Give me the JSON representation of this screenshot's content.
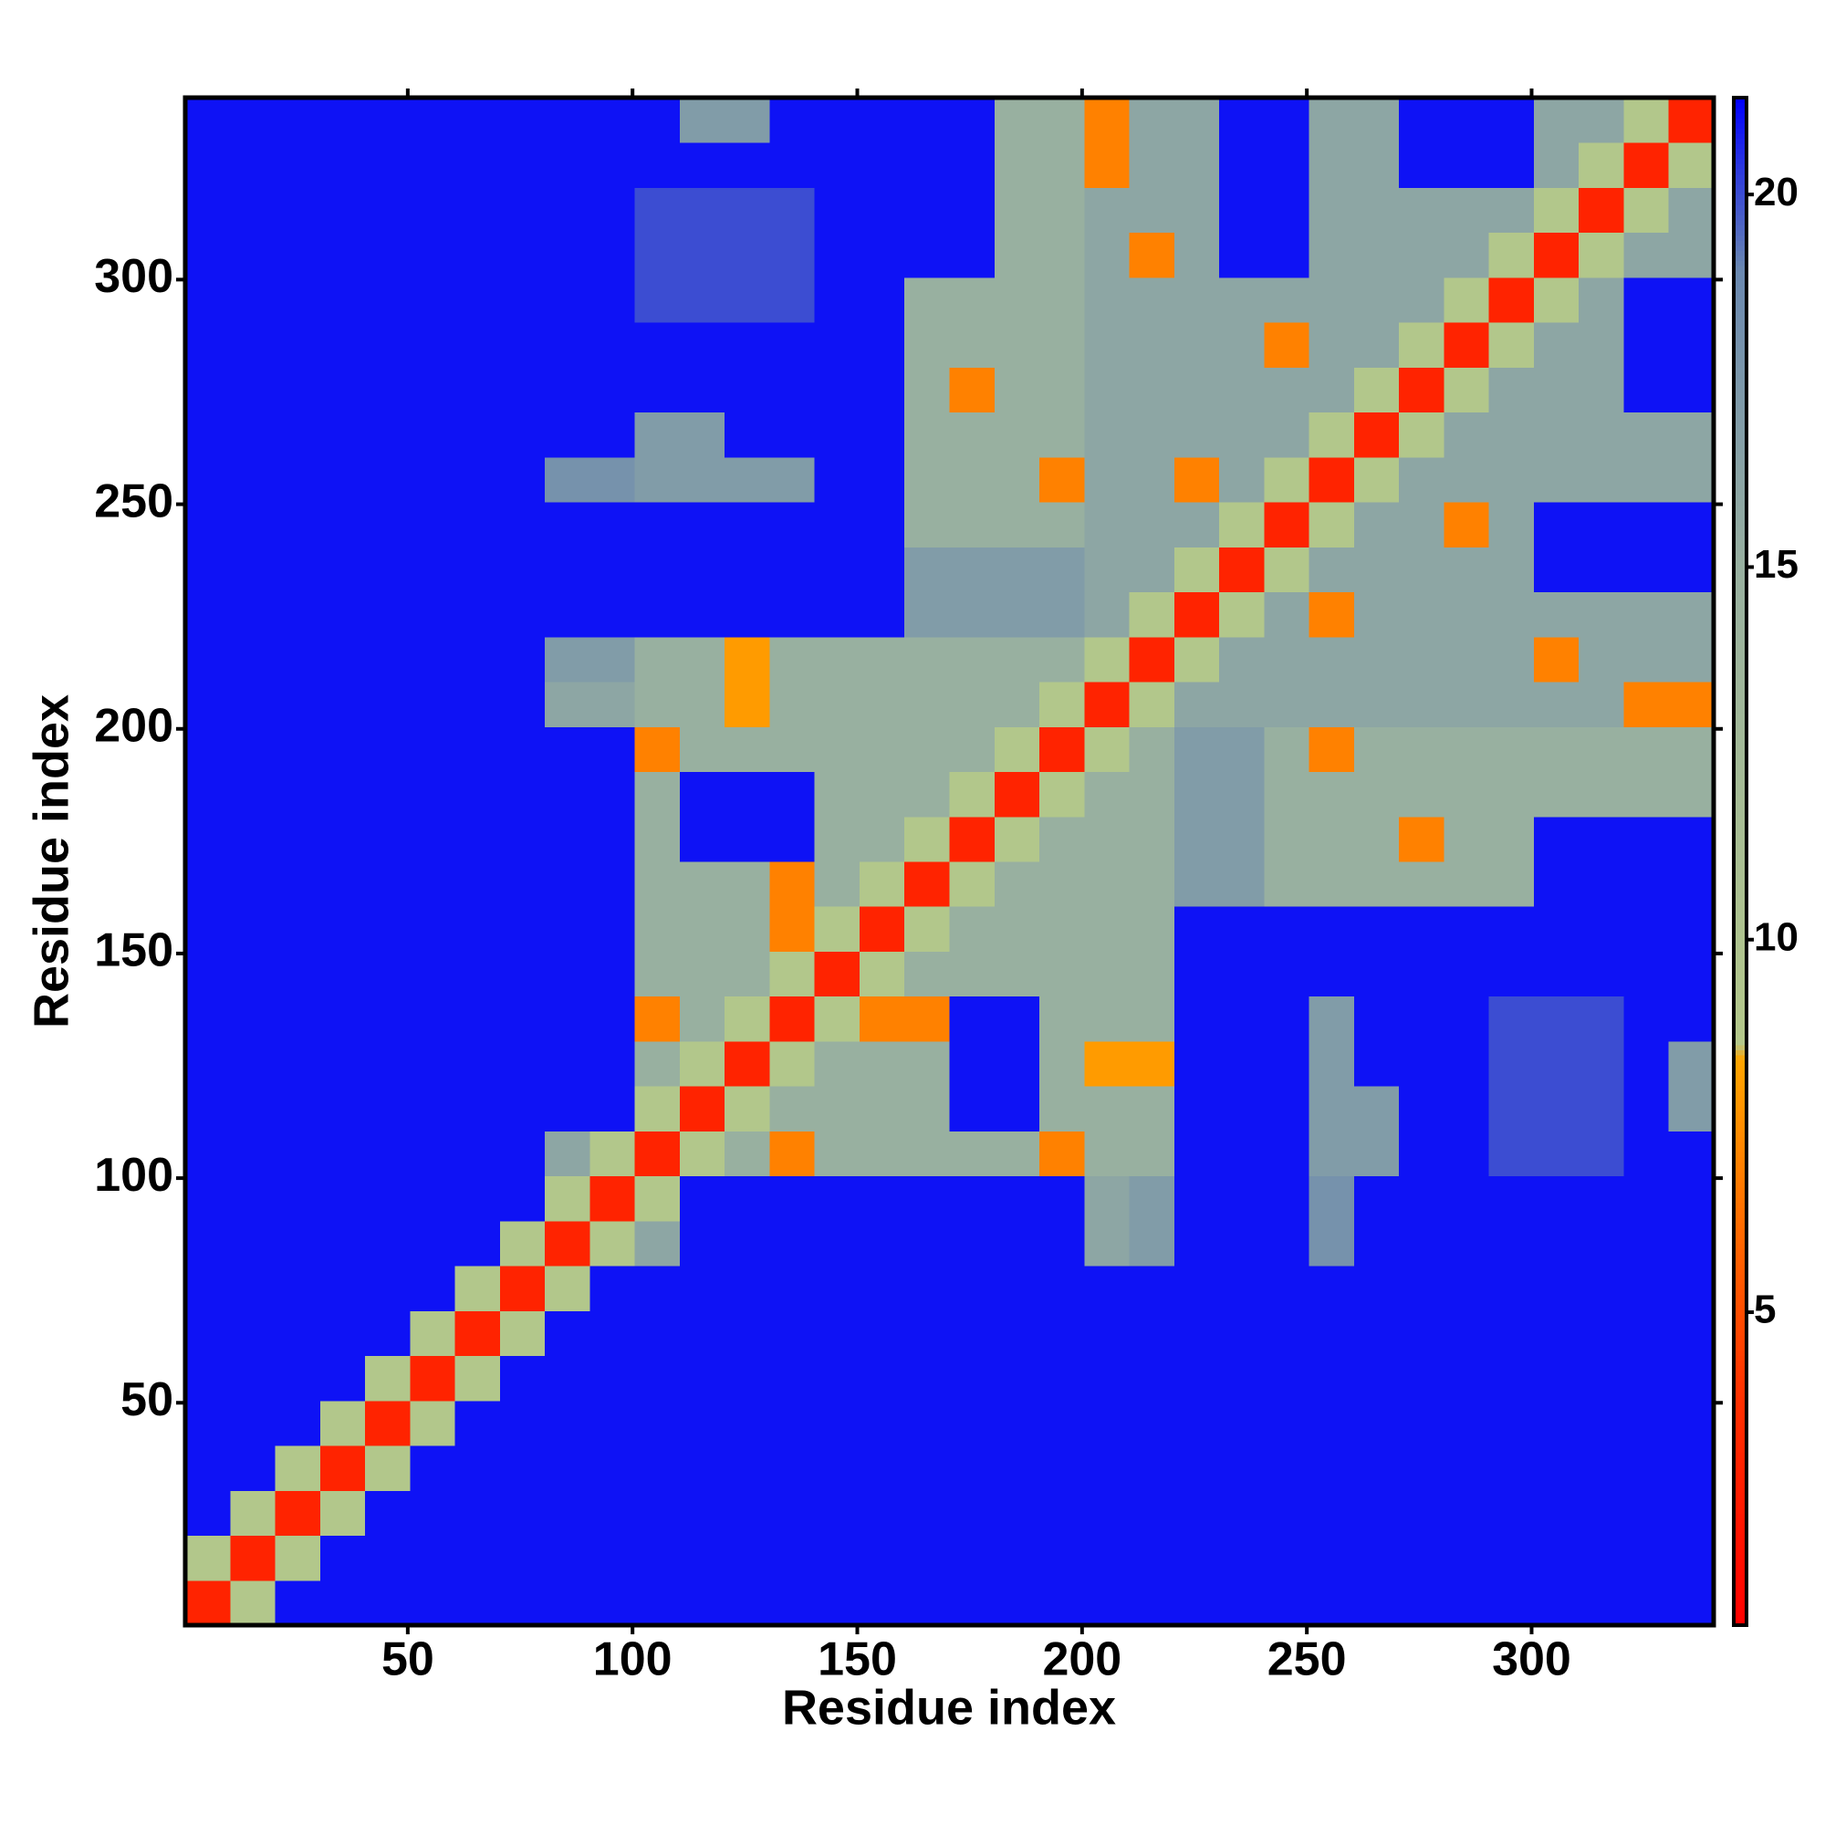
{
  "chart_data": {
    "type": "heatmap",
    "x_label": "Residue index",
    "y_label": "Residue index",
    "bins": [
      0.5,
      10.5,
      20.5,
      30.5,
      40.5,
      50.5,
      60.5,
      70.5,
      80.5,
      90.5,
      100.5,
      110.5,
      120.5,
      130.5,
      140.5,
      150.5,
      160.5,
      170.5,
      180.5,
      190.5,
      200.5,
      210.5,
      220.5,
      230.5,
      240.5,
      250.5,
      260.5,
      270.5,
      280.5,
      290.5,
      300.5,
      310.5,
      320.5,
      330.5,
      340.5
    ],
    "xlim": [
      0.5,
      340.5
    ],
    "ylim": [
      0.5,
      340.5
    ],
    "xticks": [
      50,
      100,
      150,
      200,
      250,
      300
    ],
    "yticks": [
      50,
      100,
      150,
      200,
      250,
      300
    ],
    "colorbar": {
      "lim": [
        0.8,
        21.3
      ],
      "ticks": [
        5,
        10,
        15,
        20
      ]
    },
    "colorscale": [
      [
        0.8,
        "#ff0000"
      ],
      [
        4,
        "#ff3300"
      ],
      [
        8.4,
        "#ffa500"
      ],
      [
        8.6,
        "#b4c88a"
      ],
      [
        15,
        "#98b0a0"
      ],
      [
        19,
        "#6a88b0"
      ],
      [
        21.3,
        "#0000ff"
      ]
    ],
    "z": [
      [
        3,
        9,
        21,
        21,
        21,
        21,
        21,
        21,
        21,
        21,
        21,
        21,
        21,
        21,
        21,
        21,
        21,
        21,
        21,
        21,
        21,
        21,
        21,
        21,
        21,
        21,
        21,
        21,
        21,
        21,
        21,
        21,
        21,
        21
      ],
      [
        9,
        3,
        9,
        21,
        21,
        21,
        21,
        21,
        21,
        21,
        21,
        21,
        21,
        21,
        21,
        21,
        21,
        21,
        21,
        21,
        21,
        21,
        21,
        21,
        21,
        21,
        21,
        21,
        21,
        21,
        21,
        21,
        21,
        21
      ],
      [
        21,
        9,
        3,
        9,
        21,
        21,
        21,
        21,
        21,
        21,
        21,
        21,
        21,
        21,
        21,
        21,
        21,
        21,
        21,
        21,
        21,
        21,
        21,
        21,
        21,
        21,
        21,
        21,
        21,
        21,
        21,
        21,
        21,
        21
      ],
      [
        21,
        21,
        9,
        3,
        9,
        21,
        21,
        21,
        21,
        21,
        21,
        21,
        21,
        21,
        21,
        21,
        21,
        21,
        21,
        21,
        21,
        21,
        21,
        21,
        21,
        21,
        21,
        21,
        21,
        21,
        21,
        21,
        21,
        21
      ],
      [
        21,
        21,
        21,
        9,
        3,
        9,
        21,
        21,
        21,
        21,
        21,
        21,
        21,
        21,
        21,
        21,
        21,
        21,
        21,
        21,
        21,
        21,
        21,
        21,
        21,
        21,
        21,
        21,
        21,
        21,
        21,
        21,
        21,
        21
      ],
      [
        21,
        21,
        21,
        21,
        9,
        3,
        9,
        21,
        21,
        21,
        21,
        21,
        21,
        21,
        21,
        21,
        21,
        21,
        21,
        21,
        21,
        21,
        21,
        21,
        21,
        21,
        21,
        21,
        21,
        21,
        21,
        21,
        21,
        21
      ],
      [
        21,
        21,
        21,
        21,
        21,
        9,
        3,
        9,
        21,
        21,
        21,
        21,
        21,
        21,
        21,
        21,
        21,
        21,
        21,
        21,
        21,
        21,
        21,
        21,
        21,
        21,
        21,
        21,
        21,
        21,
        21,
        21,
        21,
        21
      ],
      [
        21,
        21,
        21,
        21,
        21,
        21,
        9,
        3,
        9,
        21,
        21,
        21,
        21,
        21,
        21,
        21,
        21,
        21,
        21,
        21,
        21,
        21,
        21,
        21,
        21,
        21,
        21,
        21,
        21,
        21,
        21,
        21,
        21,
        21
      ],
      [
        21,
        21,
        21,
        21,
        21,
        21,
        21,
        9,
        3,
        9,
        16,
        21,
        21,
        21,
        21,
        21,
        21,
        21,
        21,
        21,
        16,
        17,
        21,
        21,
        21,
        18,
        21,
        21,
        21,
        21,
        21,
        21,
        21,
        21
      ],
      [
        21,
        21,
        21,
        21,
        21,
        21,
        21,
        21,
        9,
        3,
        9,
        21,
        21,
        21,
        21,
        21,
        21,
        21,
        21,
        21,
        16,
        17,
        21,
        21,
        21,
        18,
        21,
        21,
        21,
        21,
        21,
        21,
        21,
        21
      ],
      [
        21,
        21,
        21,
        21,
        21,
        21,
        21,
        21,
        16,
        9,
        3,
        9,
        15,
        7,
        15,
        15,
        15,
        15,
        15,
        7,
        15,
        15,
        21,
        21,
        21,
        17,
        17,
        21,
        21,
        20,
        20,
        20,
        21,
        21
      ],
      [
        21,
        21,
        21,
        21,
        21,
        21,
        21,
        21,
        21,
        21,
        9,
        3,
        9,
        15,
        15,
        15,
        15,
        21,
        21,
        15,
        15,
        15,
        21,
        21,
        21,
        17,
        17,
        21,
        21,
        20,
        20,
        20,
        21,
        17
      ],
      [
        21,
        21,
        21,
        21,
        21,
        21,
        21,
        21,
        21,
        21,
        15,
        9,
        3,
        9,
        15,
        15,
        15,
        21,
        21,
        15,
        8,
        8,
        21,
        21,
        21,
        17,
        21,
        21,
        21,
        20,
        20,
        20,
        21,
        17
      ],
      [
        21,
        21,
        21,
        21,
        21,
        21,
        21,
        21,
        21,
        21,
        7,
        15,
        9,
        3,
        9,
        7,
        7,
        21,
        21,
        15,
        15,
        15,
        21,
        21,
        21,
        17,
        21,
        21,
        21,
        20,
        20,
        20,
        21,
        21
      ],
      [
        21,
        21,
        21,
        21,
        21,
        21,
        21,
        21,
        21,
        21,
        15,
        15,
        15,
        9,
        3,
        9,
        15,
        15,
        15,
        15,
        15,
        15,
        21,
        21,
        21,
        21,
        21,
        21,
        21,
        21,
        21,
        21,
        21,
        21
      ],
      [
        21,
        21,
        21,
        21,
        21,
        21,
        21,
        21,
        21,
        21,
        15,
        15,
        15,
        7,
        9,
        3,
        9,
        15,
        15,
        15,
        15,
        15,
        21,
        21,
        21,
        21,
        21,
        21,
        21,
        21,
        21,
        21,
        21,
        21
      ],
      [
        21,
        21,
        21,
        21,
        21,
        21,
        21,
        21,
        21,
        21,
        15,
        15,
        15,
        7,
        15,
        9,
        3,
        9,
        15,
        15,
        15,
        15,
        17,
        17,
        15,
        15,
        15,
        15,
        15,
        15,
        21,
        21,
        21,
        21
      ],
      [
        21,
        21,
        21,
        21,
        21,
        21,
        21,
        21,
        21,
        21,
        15,
        21,
        21,
        21,
        15,
        15,
        9,
        3,
        9,
        15,
        15,
        15,
        17,
        17,
        15,
        15,
        15,
        7,
        15,
        15,
        21,
        21,
        21,
        21
      ],
      [
        21,
        21,
        21,
        21,
        21,
        21,
        21,
        21,
        21,
        21,
        15,
        21,
        21,
        21,
        15,
        15,
        15,
        9,
        3,
        9,
        15,
        15,
        17,
        17,
        15,
        15,
        15,
        15,
        15,
        15,
        15,
        15,
        15,
        15
      ],
      [
        21,
        21,
        21,
        21,
        21,
        21,
        21,
        21,
        21,
        21,
        7,
        15,
        15,
        15,
        15,
        15,
        15,
        15,
        9,
        3,
        9,
        15,
        17,
        17,
        15,
        7,
        15,
        15,
        15,
        15,
        15,
        15,
        15,
        15
      ],
      [
        21,
        21,
        21,
        21,
        21,
        21,
        21,
        21,
        16,
        16,
        15,
        15,
        8,
        15,
        15,
        15,
        15,
        15,
        15,
        9,
        3,
        9,
        16,
        16,
        16,
        16,
        16,
        16,
        16,
        16,
        16,
        16,
        7,
        7
      ],
      [
        21,
        21,
        21,
        21,
        21,
        21,
        21,
        21,
        17,
        17,
        15,
        15,
        8,
        15,
        15,
        15,
        15,
        15,
        15,
        15,
        9,
        3,
        9,
        16,
        16,
        16,
        16,
        16,
        16,
        16,
        7,
        16,
        16,
        16
      ],
      [
        21,
        21,
        21,
        21,
        21,
        21,
        21,
        21,
        21,
        21,
        21,
        21,
        21,
        21,
        21,
        21,
        17,
        17,
        17,
        17,
        16,
        9,
        3,
        9,
        16,
        7,
        16,
        16,
        16,
        16,
        16,
        16,
        16,
        16
      ],
      [
        21,
        21,
        21,
        21,
        21,
        21,
        21,
        21,
        21,
        21,
        21,
        21,
        21,
        21,
        21,
        21,
        17,
        17,
        17,
        17,
        16,
        16,
        9,
        3,
        9,
        16,
        16,
        16,
        16,
        16,
        21,
        21,
        21,
        21
      ],
      [
        21,
        21,
        21,
        21,
        21,
        21,
        21,
        21,
        21,
        21,
        21,
        21,
        21,
        21,
        21,
        21,
        15,
        15,
        15,
        15,
        16,
        16,
        16,
        9,
        3,
        9,
        16,
        16,
        7,
        16,
        21,
        21,
        21,
        21
      ],
      [
        21,
        21,
        21,
        21,
        21,
        21,
        21,
        21,
        18,
        18,
        17,
        17,
        17,
        17,
        21,
        21,
        15,
        15,
        15,
        7,
        16,
        16,
        7,
        16,
        9,
        3,
        9,
        16,
        16,
        16,
        16,
        16,
        16,
        16
      ],
      [
        21,
        21,
        21,
        21,
        21,
        21,
        21,
        21,
        21,
        21,
        17,
        17,
        21,
        21,
        21,
        21,
        15,
        15,
        15,
        15,
        16,
        16,
        16,
        16,
        16,
        9,
        3,
        9,
        16,
        16,
        16,
        16,
        16,
        16
      ],
      [
        21,
        21,
        21,
        21,
        21,
        21,
        21,
        21,
        21,
        21,
        21,
        21,
        21,
        21,
        21,
        21,
        15,
        7,
        15,
        15,
        16,
        16,
        16,
        16,
        16,
        16,
        9,
        3,
        9,
        16,
        16,
        16,
        21,
        21
      ],
      [
        21,
        21,
        21,
        21,
        21,
        21,
        21,
        21,
        21,
        21,
        21,
        21,
        21,
        21,
        21,
        21,
        15,
        15,
        15,
        15,
        16,
        16,
        16,
        16,
        7,
        16,
        16,
        9,
        3,
        9,
        16,
        16,
        21,
        21
      ],
      [
        21,
        21,
        21,
        21,
        21,
        21,
        21,
        21,
        21,
        21,
        20,
        20,
        20,
        20,
        21,
        21,
        15,
        15,
        15,
        15,
        16,
        16,
        16,
        16,
        16,
        16,
        16,
        16,
        9,
        3,
        9,
        16,
        21,
        21
      ],
      [
        21,
        21,
        21,
        21,
        21,
        21,
        21,
        21,
        21,
        21,
        20,
        20,
        20,
        20,
        21,
        21,
        21,
        21,
        15,
        15,
        16,
        7,
        16,
        21,
        21,
        16,
        16,
        16,
        16,
        9,
        3,
        9,
        16,
        16
      ],
      [
        21,
        21,
        21,
        21,
        21,
        21,
        21,
        21,
        21,
        21,
        20,
        20,
        20,
        20,
        21,
        21,
        21,
        21,
        15,
        15,
        16,
        16,
        16,
        21,
        21,
        16,
        16,
        16,
        16,
        16,
        9,
        3,
        9,
        16
      ],
      [
        21,
        21,
        21,
        21,
        21,
        21,
        21,
        21,
        21,
        21,
        21,
        21,
        21,
        21,
        21,
        21,
        21,
        21,
        15,
        15,
        7,
        16,
        16,
        21,
        21,
        16,
        16,
        21,
        21,
        21,
        16,
        9,
        3,
        9
      ],
      [
        21,
        21,
        21,
        21,
        21,
        21,
        21,
        21,
        21,
        21,
        21,
        17,
        17,
        21,
        21,
        21,
        21,
        21,
        15,
        15,
        7,
        16,
        16,
        21,
        21,
        16,
        16,
        21,
        21,
        21,
        16,
        16,
        9,
        3
      ]
    ]
  }
}
